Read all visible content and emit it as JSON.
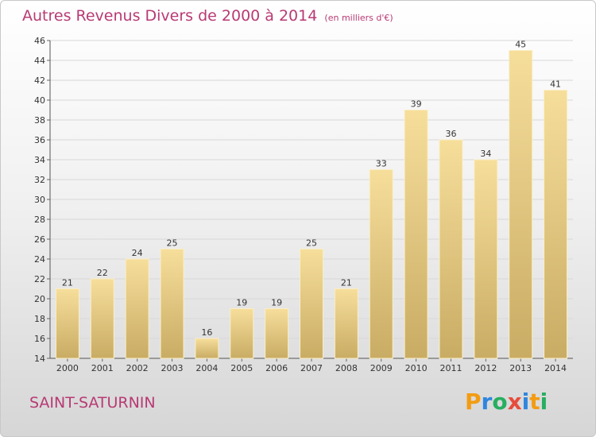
{
  "title": "Autres Revenus Divers de 2000 à 2014",
  "subtitle": "(en milliers d'€)",
  "commune": "SAINT-SATURNIN",
  "logo": {
    "text": "Proxiti",
    "letters": [
      {
        "ch": "P",
        "color": "#f39c12"
      },
      {
        "ch": "r",
        "color": "#2e86de"
      },
      {
        "ch": "o",
        "color": "#27ae60"
      },
      {
        "ch": "x",
        "color": "#e74c3c"
      },
      {
        "ch": "i",
        "color": "#2e86de"
      },
      {
        "ch": "t",
        "color": "#f39c12"
      },
      {
        "ch": "i",
        "color": "#27ae60"
      }
    ]
  },
  "colors": {
    "title": "#b83a74",
    "bar_top": "#f6de9b",
    "bar_bottom": "#c9ac64",
    "grid": "#d8d8d8"
  },
  "chart_data": {
    "type": "bar",
    "categories": [
      "2000",
      "2001",
      "2002",
      "2003",
      "2004",
      "2005",
      "2006",
      "2007",
      "2008",
      "2009",
      "2010",
      "2011",
      "2012",
      "2013",
      "2014"
    ],
    "values": [
      21,
      22,
      24,
      25,
      16,
      19,
      19,
      25,
      21,
      33,
      39,
      36,
      34,
      45,
      41
    ],
    "ylim": [
      14,
      46
    ],
    "yticks": [
      14,
      16,
      18,
      20,
      22,
      24,
      26,
      28,
      30,
      32,
      34,
      36,
      38,
      40,
      42,
      44,
      46
    ],
    "grid": true
  }
}
